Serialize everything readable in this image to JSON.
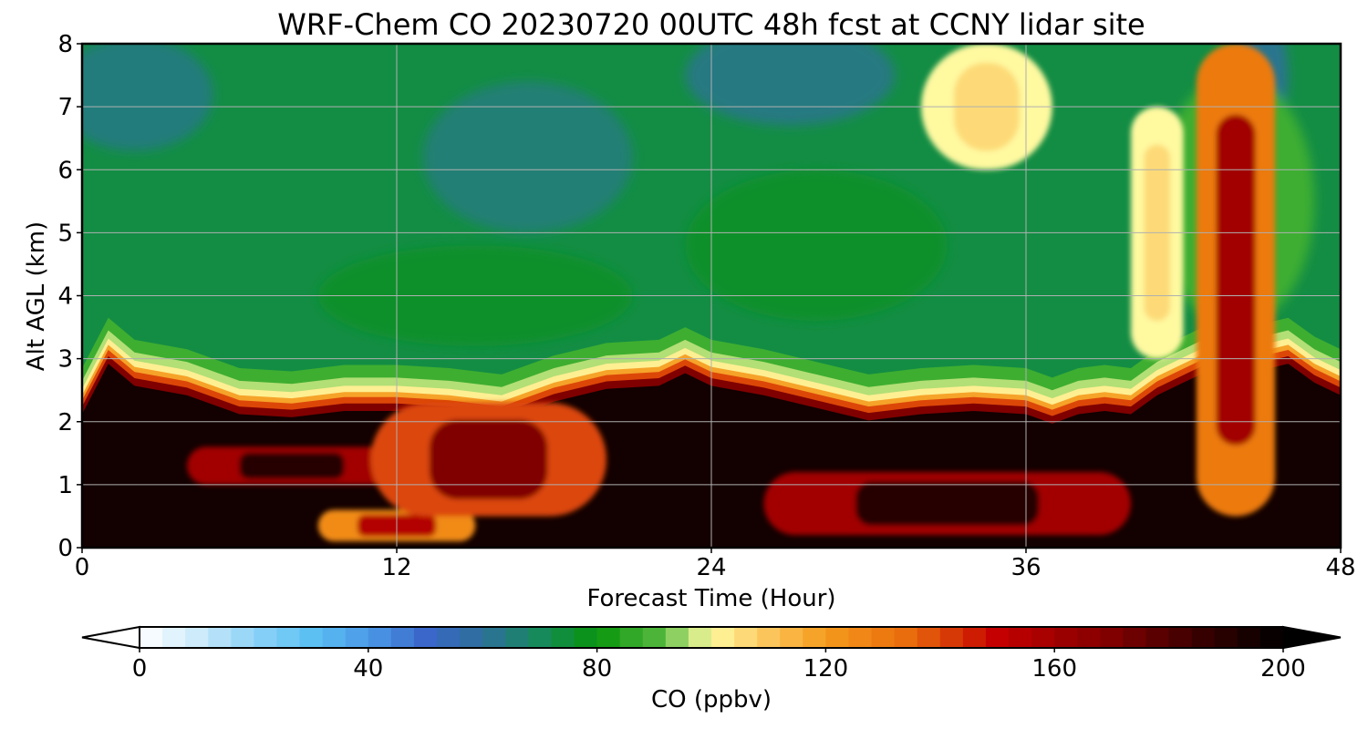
{
  "chart_data": {
    "type": "heatmap",
    "title": "WRF-Chem CO  20230720 00UTC 48h fcst at CCNY lidar site",
    "xlabel": "Forecast Time (Hour)",
    "ylabel": "Alt AGL (km)",
    "xlim": [
      0,
      48
    ],
    "ylim": [
      0,
      8
    ],
    "xticks": [
      "0",
      "12",
      "24",
      "36",
      "48"
    ],
    "yticks": [
      "0",
      "1",
      "2",
      "3",
      "4",
      "5",
      "6",
      "7",
      "8"
    ],
    "grid": true,
    "colorbar": {
      "label": "CO  (ppbv)",
      "range": [
        0,
        200
      ],
      "extend": "both",
      "ticks": [
        "0",
        "40",
        "80",
        "120",
        "160",
        "200"
      ],
      "colormap": [
        [
          0,
          "#ffffff"
        ],
        [
          10,
          "#cdebfa"
        ],
        [
          20,
          "#8ed3f8"
        ],
        [
          30,
          "#5cc0f3"
        ],
        [
          40,
          "#4c9be8"
        ],
        [
          50,
          "#3a67c9"
        ],
        [
          60,
          "#2e6e9a"
        ],
        [
          70,
          "#178a5c"
        ],
        [
          80,
          "#08940c"
        ],
        [
          90,
          "#4cb539"
        ],
        [
          95,
          "#9fd86c"
        ],
        [
          100,
          "#fff9a0"
        ],
        [
          110,
          "#fcc55c"
        ],
        [
          120,
          "#f59b1c"
        ],
        [
          135,
          "#e86a0c"
        ],
        [
          150,
          "#c40000"
        ],
        [
          170,
          "#800000"
        ],
        [
          185,
          "#3a0000"
        ],
        [
          200,
          "#000000"
        ]
      ]
    },
    "x_hours": [
      0,
      1,
      2,
      4,
      5,
      6,
      8,
      10,
      12,
      14,
      16,
      18,
      20,
      22,
      23,
      24,
      26,
      28,
      30,
      32,
      34,
      36,
      37,
      38,
      39,
      40,
      41,
      42,
      43,
      44,
      45,
      46,
      47,
      48
    ],
    "boundary_layer_top_km": [
      2.3,
      3.1,
      2.75,
      2.6,
      2.45,
      2.3,
      2.25,
      2.35,
      2.35,
      2.3,
      2.2,
      2.5,
      2.7,
      2.75,
      2.95,
      2.75,
      2.6,
      2.4,
      2.2,
      2.3,
      2.35,
      2.3,
      2.15,
      2.3,
      2.35,
      2.3,
      2.6,
      2.8,
      3.0,
      3.0,
      3.0,
      3.1,
      2.8,
      2.6
    ],
    "free_troposphere_co_ppbv": 73,
    "boundary_layer_co_ppbv": 195,
    "features": [
      {
        "hour_start": 4,
        "hour_end": 12,
        "alt_km": [
          1.0,
          1.6
        ],
        "co_ppbv": 160
      },
      {
        "hour_start": 9,
        "hour_end": 15,
        "alt_km": [
          0.1,
          0.6
        ],
        "co_ppbv": 125
      },
      {
        "hour_start": 11,
        "hour_end": 20,
        "alt_km": [
          0.5,
          2.3
        ],
        "co_ppbv": 140
      },
      {
        "hour_start": 26,
        "hour_end": 40,
        "alt_km": [
          0.2,
          1.2
        ],
        "co_ppbv": 160
      },
      {
        "hour_start": 40,
        "hour_end": 42,
        "alt_km": [
          3.0,
          7.0
        ],
        "co_ppbv": 100
      },
      {
        "hour_start": 42.5,
        "hour_end": 45.5,
        "alt_km": [
          0.5,
          8.0
        ],
        "co_ppbv": 130
      },
      {
        "hour_start": 32,
        "hour_end": 37,
        "alt_km": [
          6.0,
          8.0
        ],
        "co_ppbv": 100
      }
    ]
  }
}
